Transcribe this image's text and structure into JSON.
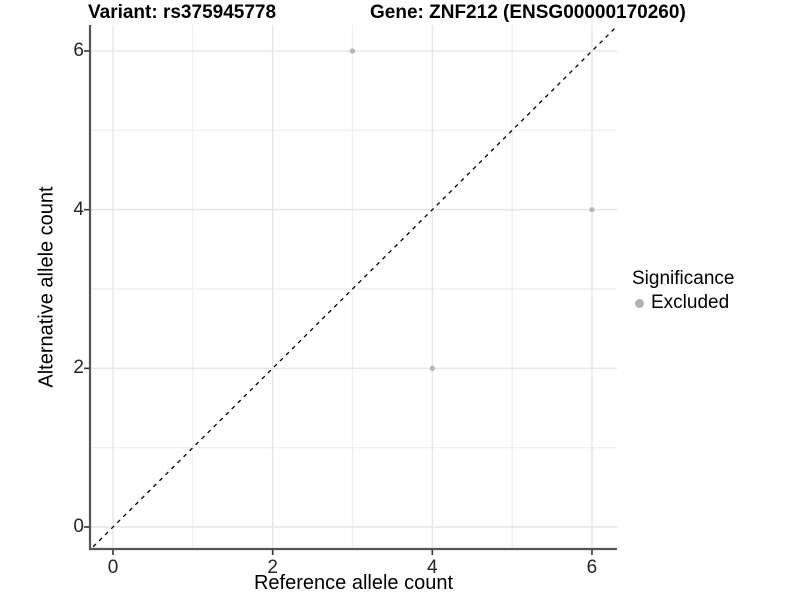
{
  "chart_data": {
    "type": "scatter",
    "title_left": "Variant: rs375945778",
    "title_right": "Gene: ZNF212 (ENSG00000170260)",
    "xlabel": "Reference allele count",
    "ylabel": "Alternative allele count",
    "xlim": [
      -0.3,
      6.3
    ],
    "ylim": [
      -0.3,
      6.3
    ],
    "xticks": [
      0,
      2,
      4,
      6
    ],
    "yticks": [
      0,
      2,
      4,
      6
    ],
    "minor_xticks": [
      1,
      3,
      5
    ],
    "minor_yticks": [
      1,
      3,
      5
    ],
    "grid": "major+minor",
    "identity_line": {
      "equation": "y = x",
      "style": "dashed",
      "color": "#000000"
    },
    "series": [
      {
        "name": "Excluded",
        "color": "#b5b5b5",
        "points": [
          [
            3,
            6
          ],
          [
            6,
            4
          ],
          [
            4,
            2
          ]
        ]
      }
    ],
    "legend": {
      "title": "Significance",
      "position": "right",
      "items": [
        {
          "label": "Excluded",
          "color": "#b0b0b0"
        }
      ]
    }
  },
  "colors": {
    "background": "#ffffff",
    "grid_major": "#e6e6e6",
    "grid_minor": "#f0f0f0",
    "axis_line": "#555555",
    "tick_mark": "#333333",
    "tick_label": "#262626",
    "point": "#b5b5b5"
  }
}
